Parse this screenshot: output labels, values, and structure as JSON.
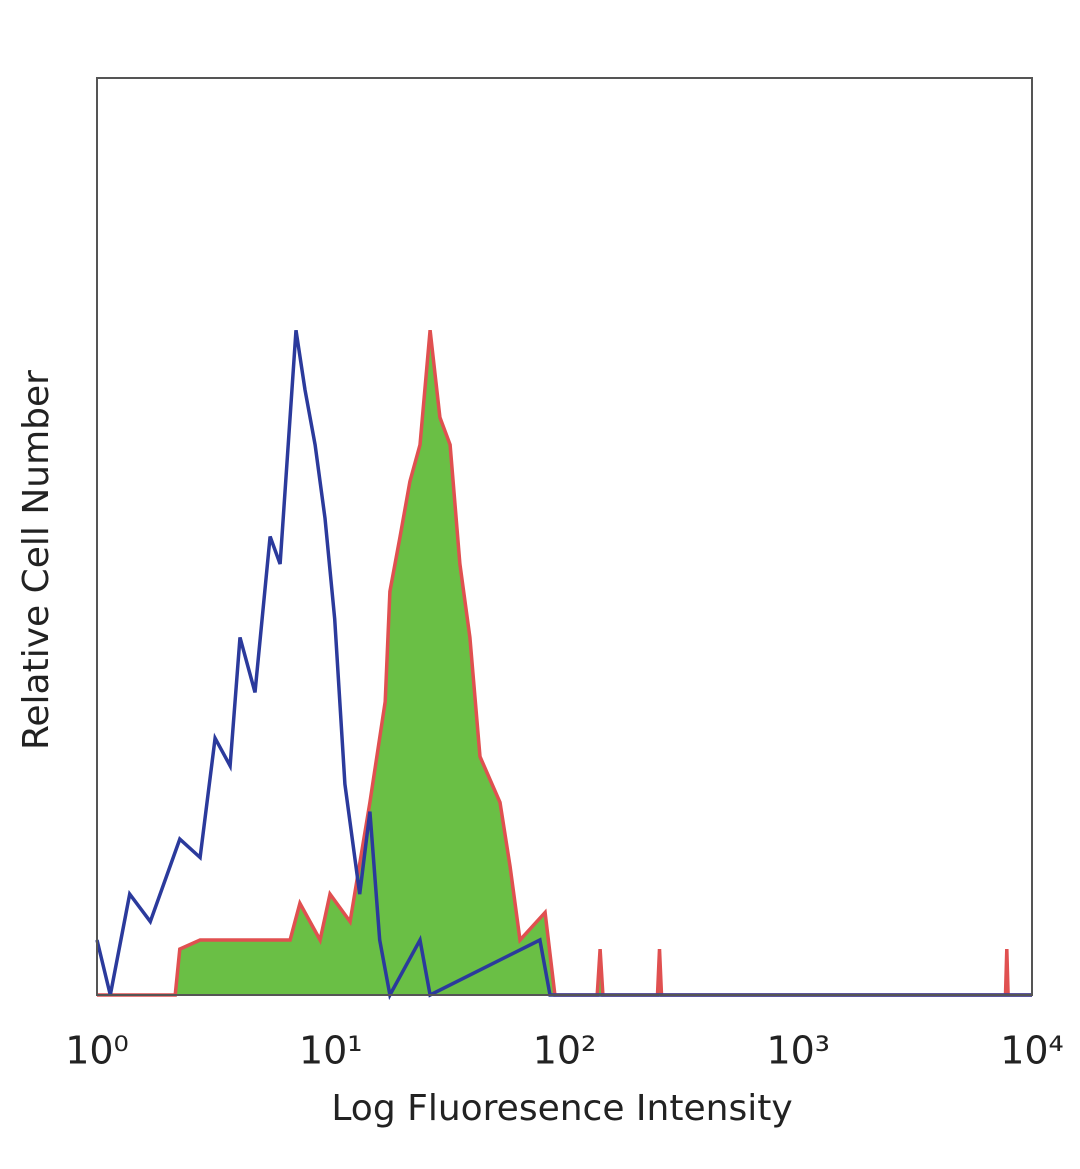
{
  "chart_data": {
    "type": "histogram-line",
    "xlabel": "Log Fluoresence Intensity",
    "ylabel": "Relative Cell Number",
    "log_x": true,
    "xlim": [
      1,
      10000
    ],
    "xticks": [
      {
        "value": 1,
        "label": "10⁰"
      },
      {
        "value": 10,
        "label": "10¹"
      },
      {
        "value": 100,
        "label": "10²"
      },
      {
        "value": 1000,
        "label": "10³"
      },
      {
        "value": 10000,
        "label": "10⁴"
      }
    ],
    "ylim": [
      0,
      100
    ],
    "series": [
      {
        "color": "#e05050",
        "fill": "#6abf45",
        "x": [
          1,
          2.16,
          2.26,
          2.76,
          4.09,
          6.7,
          7.38,
          9.0,
          9.93,
          12.1,
          14.7,
          17.1,
          17.9,
          19.8,
          21.8,
          24.1,
          26.6,
          29.3,
          32.4,
          35.7,
          39.4,
          43.5,
          53,
          58.5,
          64.5,
          82.6,
          91,
          138,
          142,
          146,
          250,
          255,
          260,
          7700,
          7800,
          7900,
          10000
        ],
        "values": [
          0,
          0,
          5,
          6,
          6,
          6,
          10,
          6,
          11,
          8,
          21,
          32,
          44,
          50,
          56,
          60,
          72.5,
          63,
          60,
          47,
          39,
          26,
          21,
          14,
          6,
          9,
          0,
          0,
          5,
          0,
          0,
          5,
          0,
          0,
          5,
          0,
          0
        ]
      },
      {
        "color": "#2b3a9c",
        "x": [
          1,
          1.14,
          1.38,
          1.69,
          2.26,
          2.76,
          3.2,
          3.71,
          4.09,
          4.74,
          5.5,
          6.07,
          7.1,
          7.76,
          8.57,
          9.45,
          10.4,
          11.5,
          13.3,
          14.7,
          16.2,
          17.9,
          24.1,
          26.6,
          78.5,
          86.7,
          10000
        ],
        "values": [
          6,
          0,
          11,
          8,
          17,
          15,
          28,
          25,
          39,
          33,
          50,
          47,
          72.5,
          66,
          60,
          52,
          41,
          23,
          11,
          20,
          6,
          0,
          6,
          0,
          6,
          0,
          0
        ]
      }
    ]
  }
}
